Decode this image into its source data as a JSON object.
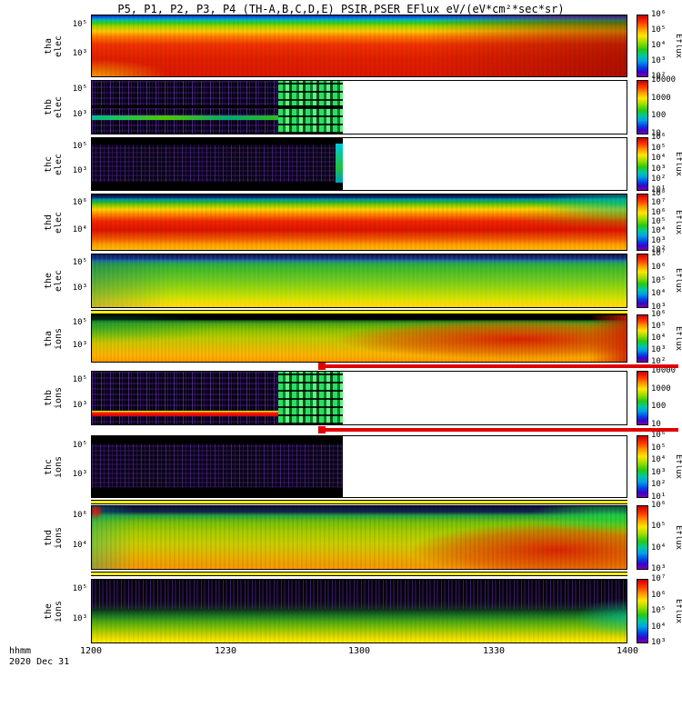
{
  "title": "P5, P1, P2, P3, P4 (TH-A,B,C,D,E) PSIR,PSER EFlux eV/(eV*cm²*sec*sr)",
  "x_axis": {
    "label": "hhmm",
    "date": "2020 Dec 31",
    "ticks": [
      "1200",
      "1230",
      "1300",
      "1330",
      "1400"
    ]
  },
  "panels": [
    {
      "sc": "tha",
      "species": "elec",
      "yticks": [
        "10⁵",
        "10³"
      ],
      "cbar_ticks": [
        "10⁶",
        "10⁵",
        "10⁴",
        "10³",
        "10²"
      ],
      "cbar_label": "Eflux"
    },
    {
      "sc": "thb",
      "species": "elec",
      "yticks": [
        "10⁵",
        "10³"
      ],
      "cbar_ticks": [
        "10000",
        "1000",
        "100",
        "10"
      ],
      "cbar_label": ""
    },
    {
      "sc": "thc",
      "species": "elec",
      "yticks": [
        "10⁵",
        "10³"
      ],
      "cbar_ticks": [
        "10⁶",
        "10⁵",
        "10⁴",
        "10³",
        "10²",
        "10¹"
      ],
      "cbar_label": "Eflux"
    },
    {
      "sc": "thd",
      "species": "elec",
      "yticks": [
        "10⁶",
        "10⁴"
      ],
      "cbar_ticks": [
        "10⁸",
        "10⁷",
        "10⁶",
        "10⁵",
        "10⁴",
        "10³",
        "10²"
      ],
      "cbar_label": "Eflux"
    },
    {
      "sc": "the",
      "species": "elec",
      "yticks": [
        "10⁵",
        "10³"
      ],
      "cbar_ticks": [
        "10⁷",
        "10⁶",
        "10⁵",
        "10⁴",
        "10³"
      ],
      "cbar_label": "Eflux"
    },
    {
      "sc": "tha",
      "species": "ions",
      "yticks": [
        "10⁵",
        "10³"
      ],
      "cbar_ticks": [
        "10⁶",
        "10⁵",
        "10⁴",
        "10³",
        "10²"
      ],
      "cbar_label": "Eflux"
    },
    {
      "sc": "thb",
      "species": "ions",
      "yticks": [
        "10⁵",
        "10³"
      ],
      "cbar_ticks": [
        "10000",
        "1000",
        "100",
        "10"
      ],
      "cbar_label": ""
    },
    {
      "sc": "thc",
      "species": "ions",
      "yticks": [
        "10⁵",
        "10³"
      ],
      "cbar_ticks": [
        "10⁶",
        "10⁵",
        "10⁴",
        "10³",
        "10²",
        "10¹"
      ],
      "cbar_label": "Eflux"
    },
    {
      "sc": "thd",
      "species": "ions",
      "yticks": [
        "10⁶",
        "10⁴"
      ],
      "cbar_ticks": [
        "10⁶",
        "10⁵",
        "10⁴",
        "10³"
      ],
      "cbar_label": "Eflux"
    },
    {
      "sc": "the",
      "species": "ions",
      "yticks": [
        "10⁵",
        "10³"
      ],
      "cbar_ticks": [
        "10⁷",
        "10⁶",
        "10⁵",
        "10⁴",
        "10³"
      ],
      "cbar_label": "Eflux"
    }
  ],
  "chart_data": [
    {
      "type": "heatmap",
      "panel": "tha elec",
      "x_start": "1200",
      "x_end": "1400",
      "x_ticks": [
        "1200",
        "1230",
        "1300",
        "1330",
        "1400"
      ],
      "y_ticks": [
        "10⁵",
        "10³"
      ],
      "z_label": "Eflux",
      "z_ticks": [
        "10⁶",
        "10⁵",
        "10⁴",
        "10³",
        "10²"
      ],
      "coverage": "full interval",
      "pattern": "broad intense flux (red/orange) at low-mid energies across whole interval, darkening red toward right; rainbow layering (yellow-green-cyan-blue) toward highest energies at top; yellow patch at lower-left"
    },
    {
      "type": "heatmap",
      "panel": "thb elec",
      "x_start": "1200",
      "x_end": "~1256",
      "x_ticks": [
        "1200",
        "1230",
        "1300",
        "1330",
        "1400"
      ],
      "y_ticks": [
        "10⁵",
        "10³"
      ],
      "z_label": "",
      "z_ticks": [
        "10000",
        "1000",
        "100",
        "10"
      ],
      "coverage": "data ends ~1256, blank afterwards",
      "pattern": "sparse low flux (dark violet speckle on black); narrow cyan-green band at lower energies; green checkerboard gap-fill ~1241-1256; black stripe mid-panel"
    },
    {
      "type": "heatmap",
      "panel": "thc elec",
      "x_start": "1200",
      "x_end": "~1256",
      "x_ticks": [
        "1200",
        "1230",
        "1300",
        "1330",
        "1400"
      ],
      "y_ticks": [
        "10⁵",
        "10³"
      ],
      "z_label": "Eflux",
      "z_ticks": [
        "10⁶",
        "10⁵",
        "10⁴",
        "10³",
        "10²",
        "10¹"
      ],
      "coverage": "data ends ~1256, blank afterwards",
      "pattern": "faint violet speckle with solid black bands at top and bottom energies; cyan sliver at data end"
    },
    {
      "type": "heatmap",
      "panel": "thd elec",
      "x_start": "1200",
      "x_end": "1400",
      "x_ticks": [
        "1200",
        "1230",
        "1300",
        "1330",
        "1400"
      ],
      "y_ticks": [
        "10⁶",
        "10⁴"
      ],
      "z_label": "Eflux",
      "z_ticks": [
        "10⁸",
        "10⁷",
        "10⁶",
        "10⁵",
        "10⁴",
        "10³",
        "10²"
      ],
      "coverage": "full interval",
      "pattern": "intense red core at mid energies for entire interval; rainbow layering above (yellow, green, cyan, dark blue at top); cooler green/cyan region at top right"
    },
    {
      "type": "heatmap",
      "panel": "the elec",
      "x_start": "1200",
      "x_end": "1400",
      "x_ticks": [
        "1200",
        "1230",
        "1300",
        "1330",
        "1400"
      ],
      "y_ticks": [
        "10⁵",
        "10³"
      ],
      "z_label": "Eflux",
      "z_ticks": [
        "10⁷",
        "10⁶",
        "10⁵",
        "10⁴",
        "10³"
      ],
      "coverage": "full interval",
      "pattern": "dark blue band at highest energies; dominant green at mid energies; yellow at lowest energies, brightening toward bottom and right"
    },
    {
      "type": "heatmap",
      "panel": "tha ions",
      "x_start": "1200",
      "x_end": "1400",
      "x_ticks": [
        "1200",
        "1230",
        "1300",
        "1330",
        "1400"
      ],
      "y_ticks": [
        "10⁵",
        "10³"
      ],
      "z_label": "Eflux",
      "z_ticks": [
        "10⁶",
        "10⁵",
        "10⁴",
        "10³",
        "10²"
      ],
      "coverage": "full interval",
      "pattern": "black band at top; green upper-left turning yellow; strong red enhancement from ~1310 to 1400 at mid-low energies; orange-yellow at bottom"
    },
    {
      "type": "heatmap",
      "panel": "thb ions",
      "x_start": "1200",
      "x_end": "~1256",
      "x_ticks": [
        "1200",
        "1230",
        "1300",
        "1330",
        "1400"
      ],
      "y_ticks": [
        "10⁵",
        "10³"
      ],
      "z_label": "",
      "z_ticks": [
        "10000",
        "1000",
        "100",
        "10"
      ],
      "coverage": "data ends ~1256, blank afterwards",
      "pattern": "dark violet speckle; intense narrow red band at low energies 1200-~1241 with yellow-green fringe above; green checkerboard gap-fill ~1241-1256"
    },
    {
      "type": "heatmap",
      "panel": "thc ions",
      "x_start": "1200",
      "x_end": "~1256",
      "x_ticks": [
        "1200",
        "1230",
        "1300",
        "1330",
        "1400"
      ],
      "y_ticks": [
        "10⁵",
        "10³"
      ],
      "z_label": "Eflux",
      "z_ticks": [
        "10⁶",
        "10⁵",
        "10⁴",
        "10³",
        "10²",
        "10¹"
      ],
      "coverage": "data ends ~1256, blank afterwards",
      "pattern": "faint violet speckle with black bands at top and bottom energies"
    },
    {
      "type": "heatmap",
      "panel": "thd ions",
      "x_start": "1200",
      "x_end": "1400",
      "x_ticks": [
        "1200",
        "1230",
        "1300",
        "1330",
        "1400"
      ],
      "y_ticks": [
        "10⁶",
        "10⁴"
      ],
      "z_label": "Eflux",
      "z_ticks": [
        "10⁶",
        "10⁵",
        "10⁴",
        "10³"
      ],
      "coverage": "full interval",
      "pattern": "broad green-yellow flux; strong red enhancement over right half at low-mid energies; bright green patch at top right; small red spot at top left; dark band at top"
    },
    {
      "type": "heatmap",
      "panel": "the ions",
      "x_start": "1200",
      "x_end": "1400",
      "x_ticks": [
        "1200",
        "1230",
        "1300",
        "1330",
        "1400"
      ],
      "y_ticks": [
        "10⁵",
        "10³"
      ],
      "z_label": "Eflux",
      "z_ticks": [
        "10⁷",
        "10⁶",
        "10⁵",
        "10⁴",
        "10³"
      ],
      "coverage": "full interval",
      "pattern": "upper half dark violet speckle (low flux); lower half green increasing to yellow at lowest energies; cyan-green tinge at right end"
    }
  ],
  "overlays": [
    {
      "type": "red-marker-line",
      "x_from": "~1252",
      "x_to": "1400",
      "position": "between tha ions and thb ions",
      "endpoint": "filled red square at left end"
    },
    {
      "type": "red-marker-line",
      "x_from": "~1252",
      "x_to": "1400",
      "position": "between thb ions and thc ions",
      "endpoint": "filled red square at left end"
    },
    {
      "type": "yellow-separator-bar",
      "position": "below the elec"
    },
    {
      "type": "yellow-separator-bar",
      "position": "below thc ions"
    },
    {
      "type": "yellow-separator-bar",
      "position": "below thd ions"
    }
  ]
}
